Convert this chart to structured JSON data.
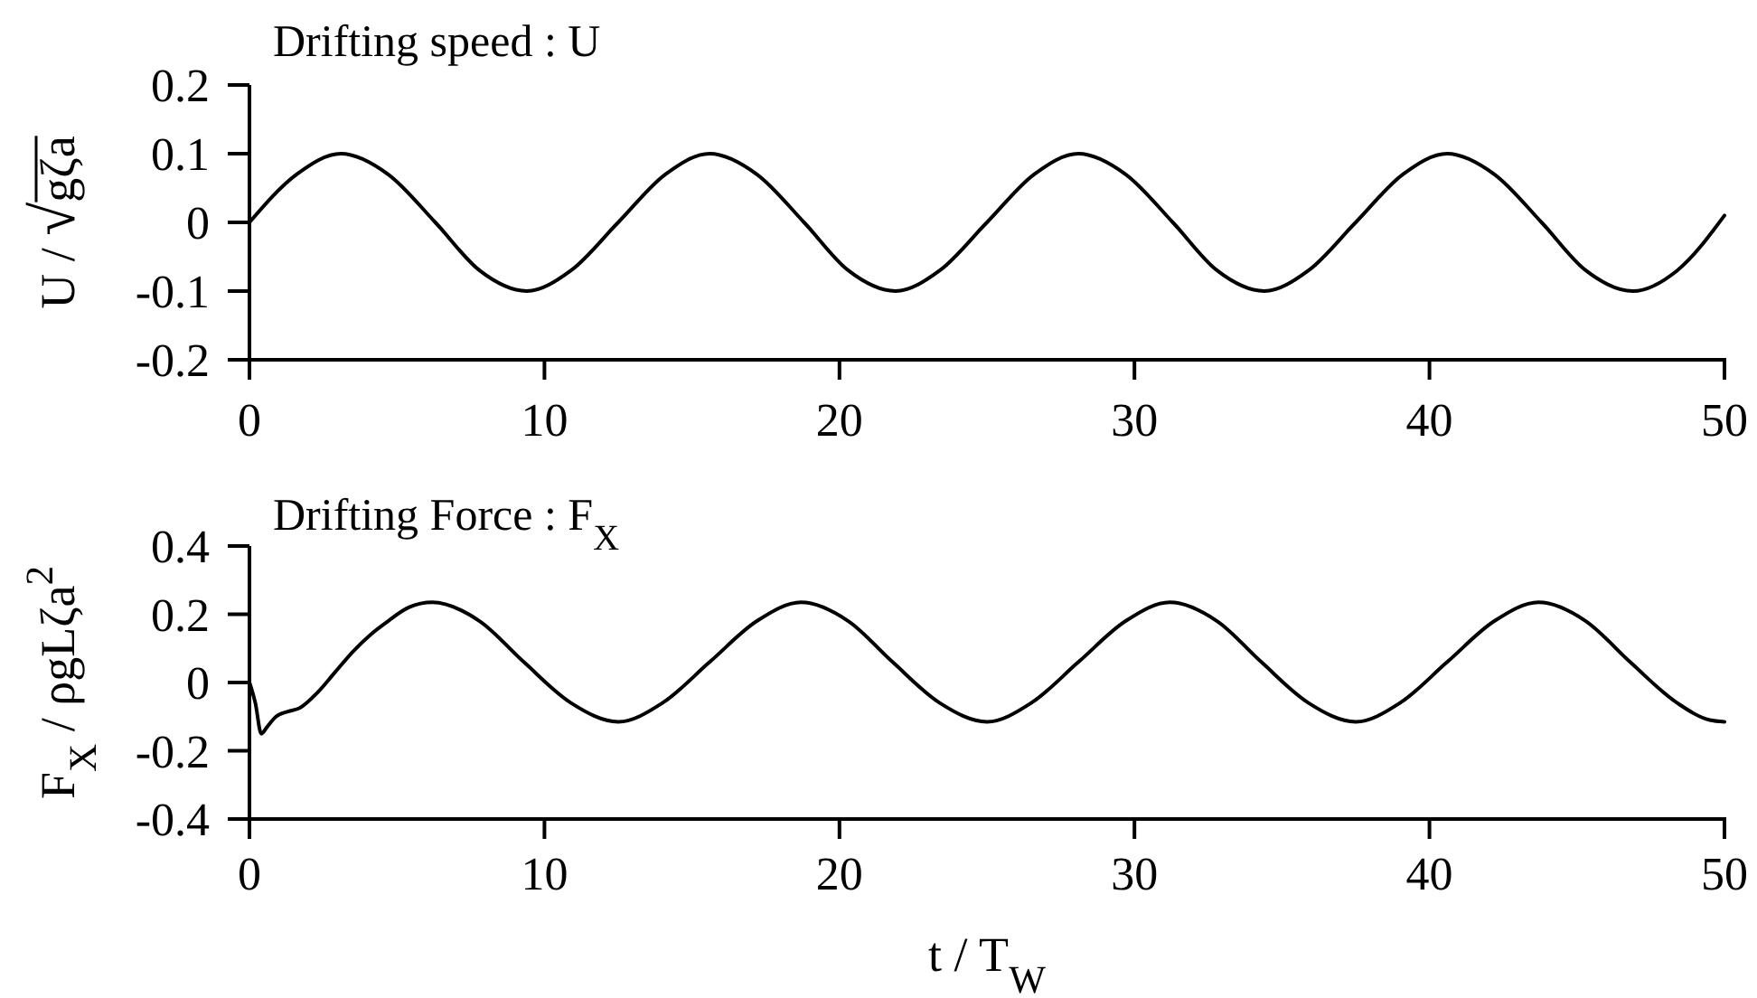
{
  "chart_data": [
    {
      "type": "line",
      "title": "Drifting speed : U",
      "ylabel": "U / √gζa",
      "xlim": [
        0,
        50
      ],
      "xticks": [
        0,
        10,
        20,
        30,
        40,
        50
      ],
      "ylim": [
        -0.2,
        0.2
      ],
      "yticks": [
        -0.2,
        -0.1,
        0,
        0.1,
        0.2
      ],
      "x": [
        0,
        1.6,
        3.1,
        4.7,
        6.3,
        7.8,
        9.4,
        10.9,
        12.5,
        14.1,
        15.6,
        17.2,
        18.8,
        20.3,
        21.9,
        23.4,
        25,
        26.6,
        28.1,
        29.7,
        31.3,
        32.8,
        34.4,
        35.9,
        37.5,
        39.1,
        40.6,
        42.2,
        43.8,
        45.3,
        46.9,
        48.4,
        50
      ],
      "series": [
        {
          "color": "#000000",
          "values": [
            0,
            0.07,
            0.1,
            0.07,
            0,
            -0.07,
            -0.1,
            -0.07,
            0,
            0.07,
            0.1,
            0.07,
            0,
            -0.07,
            -0.1,
            -0.07,
            0,
            0.07,
            0.1,
            0.07,
            0,
            -0.07,
            -0.1,
            -0.07,
            0,
            0.07,
            0.1,
            0.07,
            0,
            -0.07,
            -0.1,
            -0.07,
            0.01
          ]
        }
      ]
    },
    {
      "type": "line",
      "title": "Drifting Force : F$_{X}$",
      "ylabel": "F$_{X}$ / ρgLζa$^{2}$",
      "xlabel": "t / T$_{W}$",
      "xlim": [
        0,
        50
      ],
      "xticks": [
        0,
        10,
        20,
        30,
        40,
        50
      ],
      "ylim": [
        -0.4,
        0.4
      ],
      "yticks": [
        -0.4,
        -0.2,
        0,
        0.2,
        0.4
      ],
      "x": [
        0,
        0.2,
        0.4,
        0.6,
        0.9,
        1.3,
        1.7,
        2.3,
        2.9,
        3.5,
        4.1,
        4.7,
        5.4,
        6.2,
        7.8,
        9.3,
        10.9,
        12.5,
        14.0,
        15.6,
        17.2,
        18.7,
        20.3,
        21.8,
        23.4,
        25,
        26.5,
        28.1,
        29.7,
        31.2,
        32.8,
        34.3,
        35.9,
        37.5,
        39,
        40.6,
        42.2,
        43.7,
        45.3,
        46.8,
        48.4,
        49.5,
        50
      ],
      "series": [
        {
          "color": "#000000",
          "values": [
            0,
            -0.06,
            -0.15,
            -0.13,
            -0.1,
            -0.085,
            -0.075,
            -0.03,
            0.03,
            0.09,
            0.14,
            0.18,
            0.22,
            0.235,
            0.18,
            0.06,
            -0.06,
            -0.115,
            -0.06,
            0.06,
            0.18,
            0.235,
            0.18,
            0.06,
            -0.06,
            -0.115,
            -0.06,
            0.06,
            0.18,
            0.235,
            0.18,
            0.06,
            -0.06,
            -0.115,
            -0.06,
            0.06,
            0.18,
            0.235,
            0.18,
            0.06,
            -0.06,
            -0.11,
            -0.115
          ]
        }
      ]
    }
  ]
}
